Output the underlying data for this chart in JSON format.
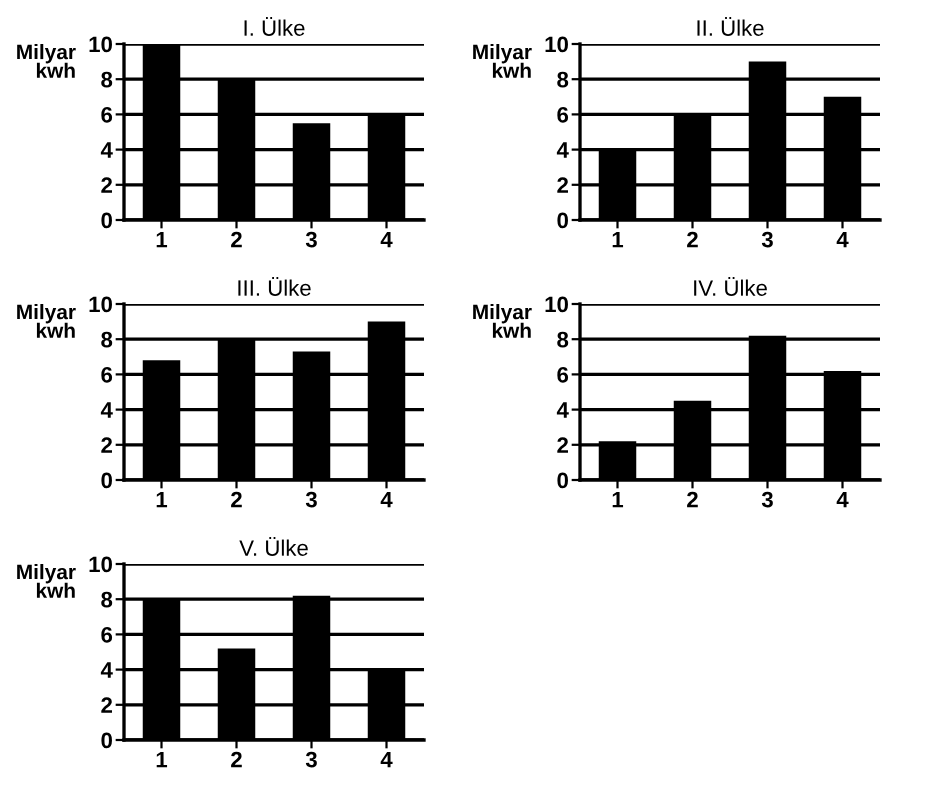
{
  "chart_data": [
    {
      "type": "bar",
      "title": "I. Ülke",
      "ylabel": "Milyar\nkwh",
      "categories": [
        "1",
        "2",
        "3",
        "4"
      ],
      "values": [
        10,
        8,
        5.5,
        6
      ],
      "color": "#000000",
      "ylim": [
        0,
        10
      ],
      "yticks": [
        0,
        2,
        4,
        6,
        8,
        10
      ],
      "grid": "y"
    },
    {
      "type": "bar",
      "title": "II. Ülke",
      "ylabel": "Milyar\nkwh",
      "categories": [
        "1",
        "2",
        "3",
        "4"
      ],
      "values": [
        4,
        6,
        9,
        7
      ],
      "color": "#000000",
      "ylim": [
        0,
        10
      ],
      "yticks": [
        0,
        2,
        4,
        6,
        8,
        10
      ],
      "grid": "y"
    },
    {
      "type": "bar",
      "title": "III. Ülke",
      "ylabel": "Milyar\nkwh",
      "categories": [
        "1",
        "2",
        "3",
        "4"
      ],
      "values": [
        6.8,
        8,
        7.3,
        9
      ],
      "color": "#000000",
      "ylim": [
        0,
        10
      ],
      "yticks": [
        0,
        2,
        4,
        6,
        8,
        10
      ],
      "grid": "y"
    },
    {
      "type": "bar",
      "title": "IV. Ülke",
      "ylabel": "Milyar\nkwh",
      "categories": [
        "1",
        "2",
        "3",
        "4"
      ],
      "values": [
        2.2,
        4.5,
        8.2,
        6.2
      ],
      "color": "#000000",
      "ylim": [
        0,
        10
      ],
      "yticks": [
        0,
        2,
        4,
        6,
        8,
        10
      ],
      "grid": "y"
    },
    {
      "type": "bar",
      "title": "V. Ülke",
      "ylabel": "Milyar\nkwh",
      "categories": [
        "1",
        "2",
        "3",
        "4"
      ],
      "values": [
        8,
        5.2,
        8.2,
        4
      ],
      "color": "#000000",
      "ylim": [
        0,
        10
      ],
      "yticks": [
        0,
        2,
        4,
        6,
        8,
        10
      ],
      "grid": "y"
    }
  ]
}
